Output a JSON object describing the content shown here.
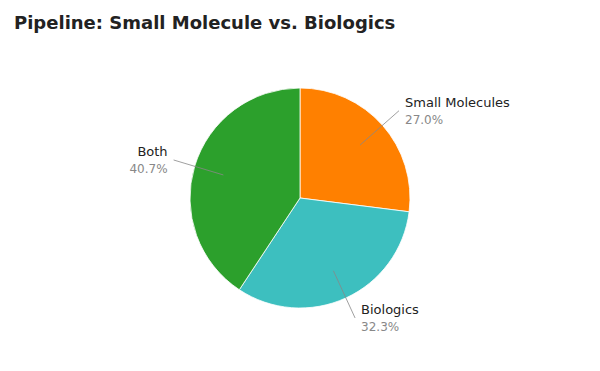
{
  "chart_data": {
    "type": "pie",
    "title": "Pipeline: Small Molecule vs. Biologics",
    "categories": [
      "Small Molecules",
      "Biologics",
      "Both"
    ],
    "values": [
      27.0,
      32.3,
      40.7
    ],
    "value_labels": [
      "27.0%",
      "32.3%",
      "40.7%"
    ],
    "colors": [
      "#FF8000",
      "#3DBFBF",
      "#2CA02C"
    ]
  }
}
